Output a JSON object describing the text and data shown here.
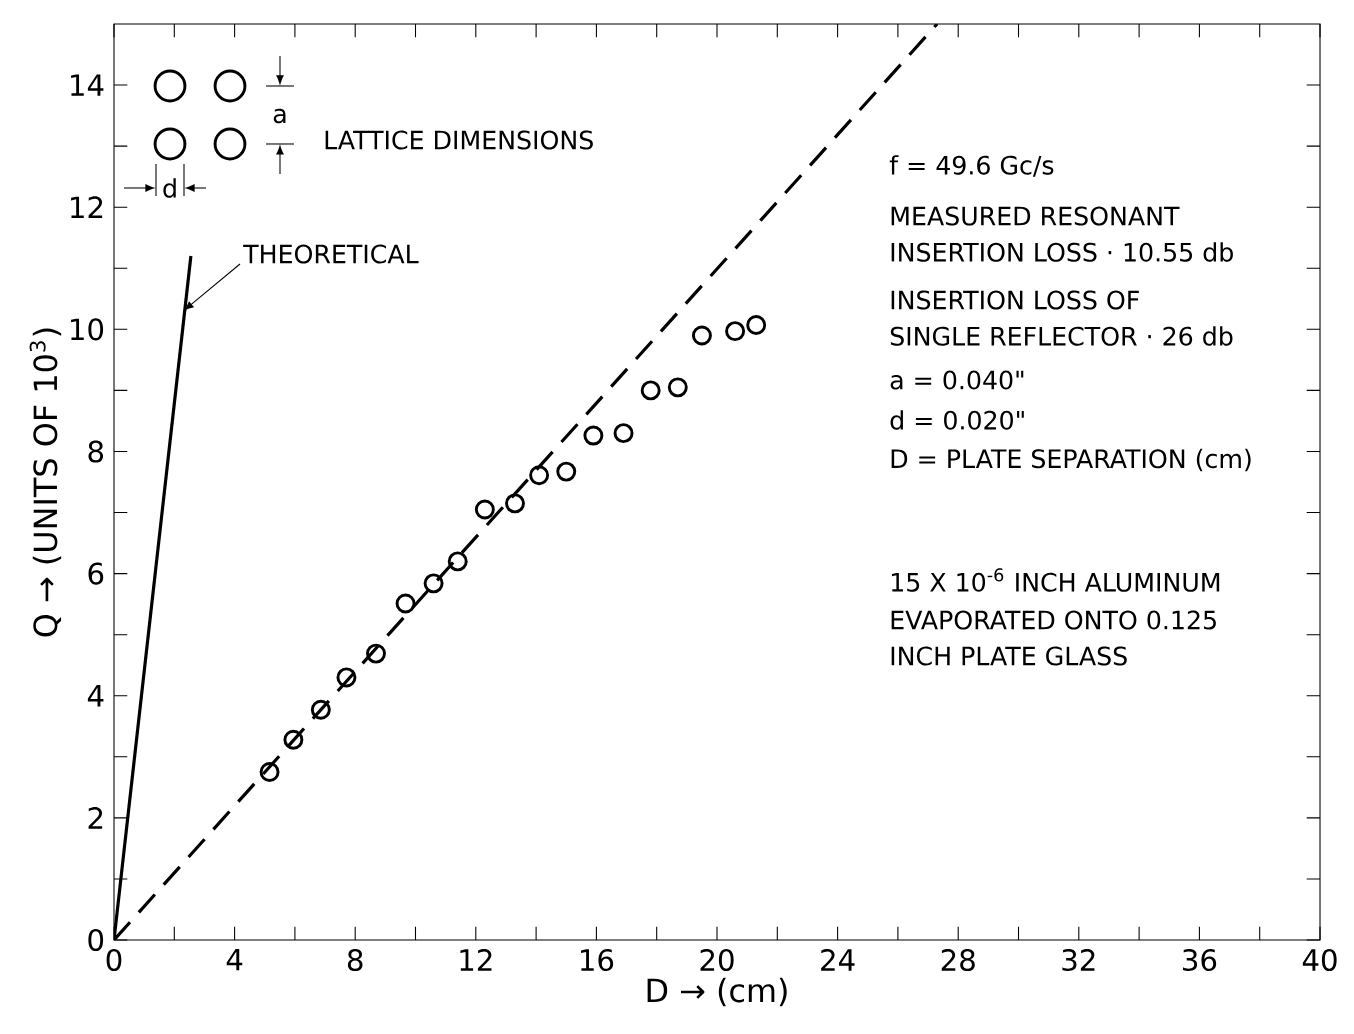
{
  "chart_data": {
    "type": "scatter",
    "xlabel": "D → (cm)",
    "ylabel": "Q → (UNITS OF 10$^{3}$)",
    "xlim": [
      0,
      40
    ],
    "ylim": [
      0,
      15
    ],
    "xticks": [
      0,
      {
        "value": 2,
        "label": null
      },
      4,
      {
        "value": 6,
        "label": null
      },
      8,
      {
        "value": 10,
        "label": null
      },
      12,
      {
        "value": 14,
        "label": null
      },
      16,
      {
        "value": 18,
        "label": null
      },
      20,
      {
        "value": 22,
        "label": null
      },
      24,
      {
        "value": 26,
        "label": null
      },
      28,
      {
        "value": 30,
        "label": null
      },
      32,
      {
        "value": 34,
        "label": null
      },
      36,
      {
        "value": 38,
        "label": null
      },
      40
    ],
    "yticks": [
      0,
      {
        "value": 1,
        "label": null
      },
      2,
      {
        "value": 3,
        "label": null
      },
      4,
      {
        "value": 5,
        "label": null
      },
      6,
      {
        "value": 7,
        "label": null
      },
      8,
      {
        "value": 9,
        "label": null
      },
      10,
      {
        "value": 11,
        "label": null
      },
      12,
      {
        "value": 13,
        "label": null
      },
      14
    ],
    "grid": false,
    "series": [
      {
        "marker": "circle",
        "color": "#000000",
        "x": [
          5.16,
          5.95,
          6.86,
          7.71,
          8.69,
          9.67,
          10.6,
          11.4,
          12.3,
          13.3,
          14.1,
          15.0,
          15.9,
          16.9,
          17.8,
          18.7,
          19.5,
          20.6,
          21.3
        ],
        "values": [
          2.75,
          3.28,
          3.77,
          4.3,
          4.69,
          5.51,
          5.84,
          6.2,
          7.05,
          7.15,
          7.61,
          7.67,
          8.26,
          8.3,
          9.0,
          9.05,
          9.9,
          9.97,
          10.07
        ]
      },
      {
        "type": "line",
        "line_style": "dashed",
        "marker": "none",
        "color": "#000000",
        "x": [
          0,
          27.3
        ],
        "values": [
          0,
          15
        ]
      },
      {
        "type": "line",
        "line_style": "solid",
        "marker": "none",
        "color": "#000000",
        "x": [
          0,
          2.55
        ],
        "values": [
          0,
          11.2
        ]
      }
    ],
    "annotations": [
      {
        "text": "THEORETICAL",
        "x": 2.3,
        "y": 10.3
      },
      "LATTICE DIMENSIONS",
      "a",
      "d",
      "f = 49.6  Gc/s",
      "MEASURED RESONANT",
      "INSERTION LOSS · 10.55 db",
      "INSERTION LOSS OF",
      "SINGLE REFLECTOR · 26 db",
      "a = 0.040\"",
      "d = 0.020\"",
      "D = PLATE SEPARATION (cm)",
      "15 X 10$^{-6}$ INCH ALUMINUM",
      "EVAPORATED ONTO 0.125",
      "INCH PLATE GLASS"
    ]
  }
}
